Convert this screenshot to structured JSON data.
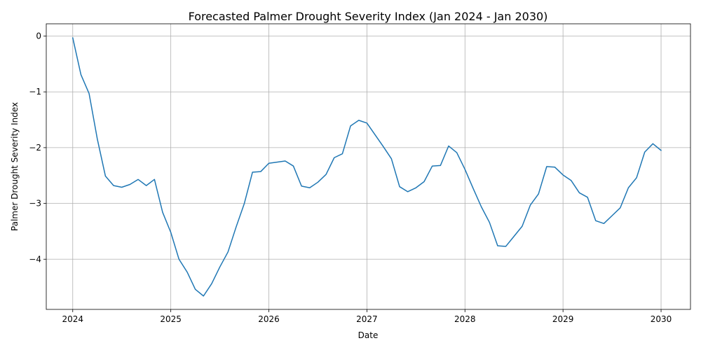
{
  "chart_data": {
    "type": "line",
    "title": "Forecasted Palmer Drought Severity Index (Jan 2024 - Jan 2030)",
    "xlabel": "Date",
    "ylabel": "Palmer Drought Severity Index",
    "xlim": [
      2023.73,
      2030.3
    ],
    "ylim": [
      -4.9,
      0.22
    ],
    "xticks": [
      2024,
      2025,
      2026,
      2027,
      2028,
      2029,
      2030
    ],
    "xtick_labels": [
      "2024",
      "2025",
      "2026",
      "2027",
      "2028",
      "2029",
      "2030"
    ],
    "yticks": [
      0,
      -1,
      -2,
      -3,
      -4
    ],
    "ytick_labels": [
      "0",
      "−1",
      "−2",
      "−3",
      "−4"
    ],
    "grid": true,
    "line_color": "#1f77b4",
    "series": [
      {
        "x": [
          "2024-01",
          "2024-02",
          "2024-03",
          "2024-04",
          "2024-05",
          "2024-06",
          "2024-07",
          "2024-08",
          "2024-09",
          "2024-10",
          "2024-11",
          "2024-12",
          "2025-01",
          "2025-02",
          "2025-03",
          "2025-04",
          "2025-05",
          "2025-06",
          "2025-07",
          "2025-08",
          "2025-09",
          "2025-10",
          "2025-11",
          "2025-12",
          "2026-01",
          "2026-02",
          "2026-03",
          "2026-04",
          "2026-05",
          "2026-06",
          "2026-07",
          "2026-08",
          "2026-09",
          "2026-10",
          "2026-11",
          "2026-12",
          "2027-01",
          "2027-02",
          "2027-03",
          "2027-04",
          "2027-05",
          "2027-06",
          "2027-07",
          "2027-08",
          "2027-09",
          "2027-10",
          "2027-11",
          "2027-12",
          "2028-01",
          "2028-02",
          "2028-03",
          "2028-04",
          "2028-05",
          "2028-06",
          "2028-07",
          "2028-08",
          "2028-09",
          "2028-10",
          "2028-11",
          "2028-12",
          "2029-01",
          "2029-02",
          "2029-03",
          "2029-04",
          "2029-05",
          "2029-06",
          "2029-07",
          "2029-08",
          "2029-09",
          "2029-10",
          "2029-11",
          "2029-12",
          "2030-01"
        ],
        "values": [
          -0.03,
          -0.69,
          -1.03,
          -1.84,
          -2.51,
          -2.68,
          -2.71,
          -2.66,
          -2.57,
          -2.68,
          -2.57,
          -3.16,
          -3.52,
          -4.0,
          -4.23,
          -4.54,
          -4.66,
          -4.44,
          -4.14,
          -3.87,
          -3.42,
          -3.0,
          -2.44,
          -2.43,
          -2.28,
          -2.26,
          -2.24,
          -2.33,
          -2.69,
          -2.72,
          -2.62,
          -2.48,
          -2.18,
          -2.11,
          -1.61,
          -1.51,
          -1.56,
          -1.77,
          -1.98,
          -2.2,
          -2.7,
          -2.79,
          -2.72,
          -2.61,
          -2.33,
          -2.32,
          -1.97,
          -2.09,
          -2.39,
          -2.73,
          -3.06,
          -3.34,
          -3.76,
          -3.77,
          -3.59,
          -3.41,
          -3.03,
          -2.83,
          -2.34,
          -2.35,
          -2.49,
          -2.59,
          -2.81,
          -2.89,
          -3.31,
          -3.36,
          -3.22,
          -3.08,
          -2.72,
          -2.54,
          -2.08,
          -1.93,
          -2.05
        ]
      }
    ]
  }
}
